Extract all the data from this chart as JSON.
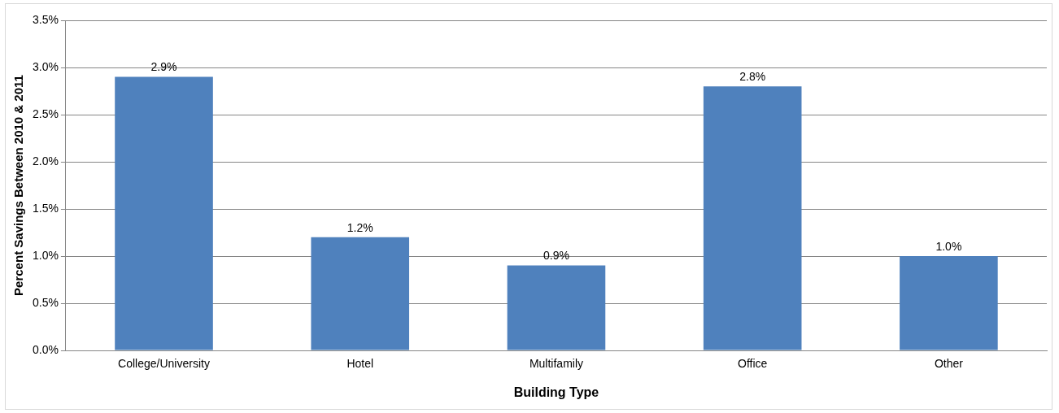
{
  "chart_data": {
    "type": "bar",
    "xlabel": "Building Type",
    "ylabel": "Percent Savings Between 2010 & 2011",
    "categories": [
      "College/University",
      "Hotel",
      "Multifamily",
      "Office",
      "Other"
    ],
    "values": [
      2.9,
      1.2,
      0.9,
      2.8,
      1.0
    ],
    "value_labels": [
      "2.9%",
      "1.2%",
      "0.9%",
      "2.8%",
      "1.0%"
    ],
    "color": "#4f81bd",
    "ylim": [
      0,
      3.5
    ],
    "yticks": [
      {
        "value": 0,
        "label": "0.0%"
      },
      {
        "value": 0.5,
        "label": "0.5%"
      },
      {
        "value": 1,
        "label": "1.0%"
      },
      {
        "value": 1.5,
        "label": "1.5%"
      },
      {
        "value": 2,
        "label": "2.0%"
      },
      {
        "value": 2.5,
        "label": "2.5%"
      },
      {
        "value": 3,
        "label": "3.0%"
      },
      {
        "value": 3.5,
        "label": "3.5%"
      }
    ],
    "grid": "y",
    "legend": false
  }
}
